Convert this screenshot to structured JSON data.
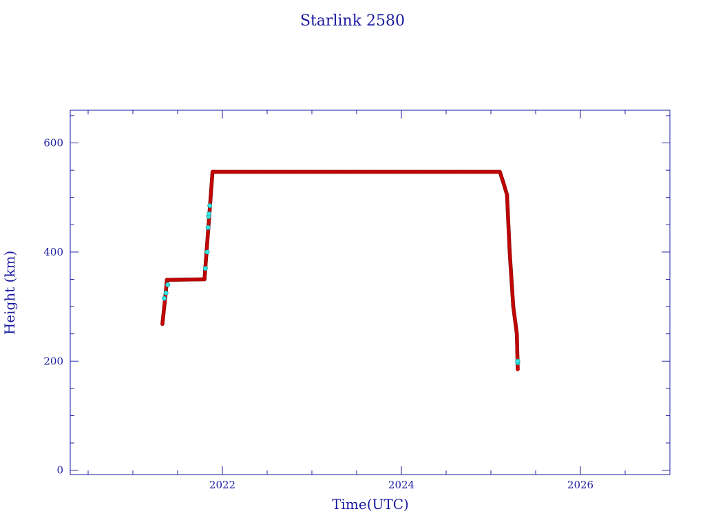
{
  "chart_data": {
    "type": "scatter",
    "title": "Starlink 2580",
    "xlabel": "Time(UTC)",
    "ylabel": "Height (km)",
    "xlim": [
      2020.3,
      2027.0
    ],
    "ylim": [
      -8,
      660
    ],
    "xticks": [
      2022,
      2024,
      2026
    ],
    "xtick_labels": [
      "2022",
      "2024",
      "2026"
    ],
    "x_minor_step": 0.5,
    "yticks": [
      0,
      200,
      400,
      600
    ],
    "ytick_labels": [
      "0",
      "200",
      "400",
      "600"
    ],
    "y_minor_step": 50,
    "grid": false,
    "legend": "none",
    "colors": {
      "axis": "#1a1aa0",
      "primary_marker": "#e00000",
      "secondary_marker": "#33e6e6"
    },
    "series": [
      {
        "marker_color": "#e00000",
        "segments": [
          {
            "x0": 2021.33,
            "y0": 268,
            "x1": 2021.37,
            "y1": 330
          },
          {
            "x0": 2021.37,
            "y0": 330,
            "x1": 2021.38,
            "y1": 349
          },
          {
            "x0": 2021.38,
            "y0": 349,
            "x1": 2021.8,
            "y1": 350
          },
          {
            "x0": 2021.8,
            "y0": 350,
            "x1": 2021.89,
            "y1": 547
          },
          {
            "x0": 2021.89,
            "y0": 547,
            "x1": 2025.1,
            "y1": 547
          },
          {
            "x0": 2025.1,
            "y0": 547,
            "x1": 2025.14,
            "y1": 527
          },
          {
            "x0": 2025.14,
            "y0": 527,
            "x1": 2025.18,
            "y1": 505
          },
          {
            "x0": 2025.18,
            "y0": 505,
            "x1": 2025.21,
            "y1": 400
          },
          {
            "x0": 2025.21,
            "y0": 400,
            "x1": 2025.25,
            "y1": 300
          },
          {
            "x0": 2025.25,
            "y0": 300,
            "x1": 2025.29,
            "y1": 250
          },
          {
            "x0": 2025.29,
            "y0": 250,
            "x1": 2025.3,
            "y1": 185
          }
        ]
      },
      {
        "marker_color": "#33e6e6",
        "points": [
          [
            2021.35,
            315
          ],
          [
            2021.37,
            325
          ],
          [
            2021.39,
            340
          ],
          [
            2021.81,
            370
          ],
          [
            2021.83,
            400
          ],
          [
            2021.84,
            445
          ],
          [
            2021.845,
            465
          ],
          [
            2021.85,
            470
          ],
          [
            2021.86,
            485
          ],
          [
            2025.3,
            197
          ],
          [
            2025.3,
            200
          ]
        ]
      }
    ]
  }
}
